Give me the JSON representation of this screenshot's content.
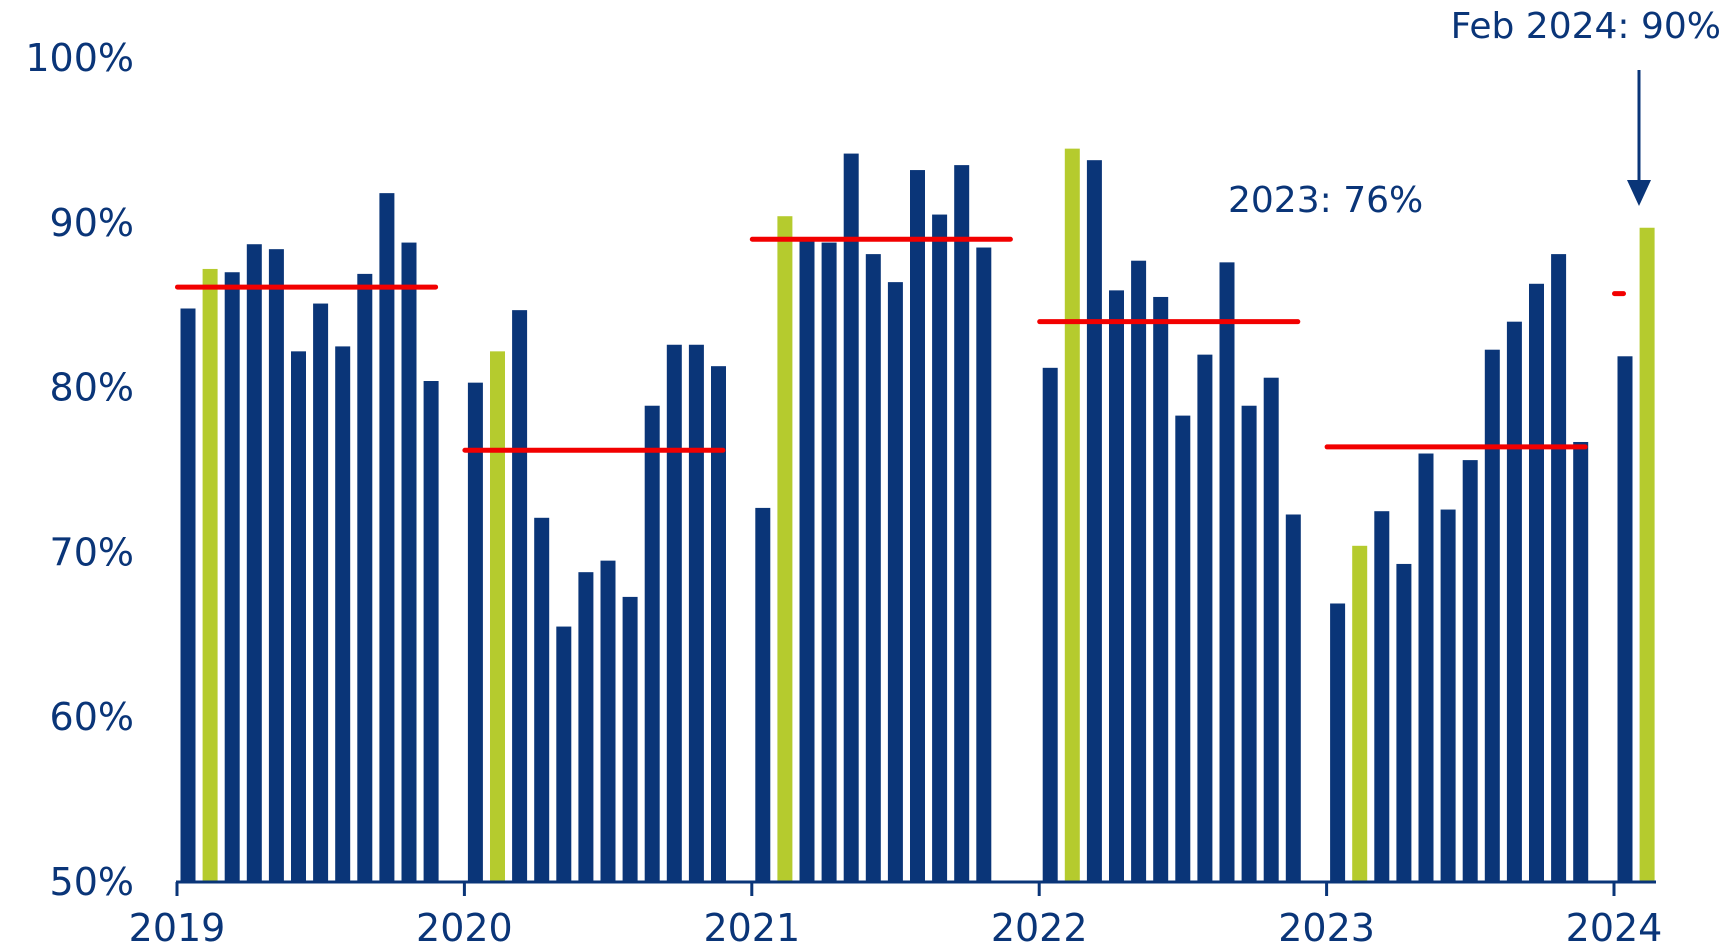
{
  "chart_data": {
    "type": "bar",
    "title": "",
    "xlabel": "",
    "ylabel": "",
    "ylim": [
      50,
      100
    ],
    "yticks": [
      "50%",
      "60%",
      "70%",
      "80%",
      "90%",
      "100%"
    ],
    "ytick_values": [
      50,
      60,
      70,
      80,
      90,
      100
    ],
    "year_labels": [
      "2019",
      "2020",
      "2021",
      "2022",
      "2023",
      "2024"
    ],
    "grid": false,
    "legend": "none",
    "colors": {
      "bar": "#0a3578",
      "highlight_bar": "#b5cb2e",
      "average_line": "#f20000",
      "text": "#0a3578",
      "axis": "#0a3578"
    },
    "series": [
      {
        "year": "2019",
        "values": [
          84.8,
          87.2,
          87.0,
          88.7,
          88.4,
          82.2,
          85.1,
          82.5,
          86.9,
          91.8,
          88.8,
          80.4
        ],
        "average": 86.1
      },
      {
        "year": "2020",
        "values": [
          80.3,
          82.2,
          84.7,
          72.1,
          65.5,
          68.8,
          69.5,
          67.3,
          78.9,
          82.6,
          82.6,
          81.3
        ],
        "average": 76.2
      },
      {
        "year": "2021",
        "values": [
          72.7,
          90.4,
          89.0,
          88.8,
          94.2,
          88.1,
          86.4,
          93.2,
          90.5,
          93.5,
          88.5,
          null
        ],
        "average": 89.0
      },
      {
        "year": "2022",
        "values": [
          81.2,
          94.5,
          93.8,
          85.9,
          87.7,
          85.5,
          78.3,
          82.0,
          87.6,
          78.9,
          80.6,
          72.3
        ],
        "average": 84.0
      },
      {
        "year": "2023",
        "values": [
          66.9,
          70.4,
          72.5,
          69.3,
          76.0,
          72.6,
          75.6,
          82.3,
          84.0,
          86.3,
          88.1,
          76.7
        ],
        "average": 76.4
      },
      {
        "year": "2024",
        "values": [
          81.9,
          89.7
        ],
        "average": 85.7
      }
    ],
    "highlight_month_index": 1,
    "annotations": [
      {
        "text": "2023: 76%",
        "year": "2023"
      },
      {
        "text": "Feb 2024: 90%",
        "year": "2024",
        "arrow": true
      }
    ]
  }
}
